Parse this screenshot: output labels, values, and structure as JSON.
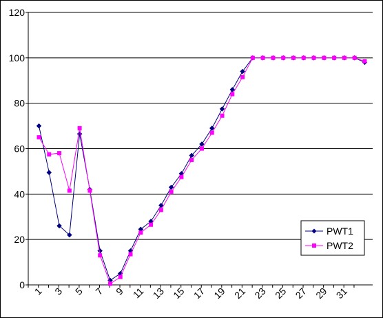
{
  "chart_data": {
    "type": "line",
    "title": "",
    "xlabel": "",
    "ylabel": "",
    "x": [
      1,
      2,
      3,
      4,
      5,
      6,
      7,
      8,
      9,
      10,
      11,
      12,
      13,
      14,
      15,
      16,
      17,
      18,
      19,
      20,
      21,
      22,
      23,
      24,
      25,
      26,
      27,
      28,
      29,
      30,
      31,
      32,
      33
    ],
    "x_tick_labels": [
      "1",
      "3",
      "5",
      "7",
      "9",
      "11",
      "13",
      "15",
      "17",
      "19",
      "21",
      "23",
      "25",
      "27",
      "29",
      "31"
    ],
    "x_tick_values": [
      1,
      3,
      5,
      7,
      9,
      11,
      13,
      15,
      17,
      19,
      21,
      23,
      25,
      27,
      29,
      31
    ],
    "ylim": [
      0,
      120
    ],
    "y_ticks": [
      0,
      20,
      40,
      60,
      80,
      100,
      120
    ],
    "grid": "horizontal",
    "legend_position": "bottom-right",
    "series": [
      {
        "name": "PWT1",
        "color": "#000080",
        "marker": "diamond",
        "values": [
          70,
          49.5,
          26,
          22,
          66.5,
          42,
          15,
          2,
          5,
          15,
          24.5,
          28,
          35,
          43,
          49,
          57,
          62,
          69,
          77.5,
          86,
          94,
          100,
          100,
          100,
          100,
          100,
          100,
          100,
          100,
          100,
          100,
          100,
          98
        ]
      },
      {
        "name": "PWT2",
        "color": "#FF00FF",
        "marker": "square",
        "values": [
          65,
          57.5,
          58,
          41.5,
          69,
          41.5,
          13,
          0.5,
          3.5,
          13.5,
          23,
          26.5,
          33,
          41,
          47.5,
          55,
          60,
          67,
          74.5,
          84,
          91.5,
          100,
          100,
          100,
          100,
          100,
          100,
          100,
          100,
          100,
          100,
          100,
          98.5
        ]
      }
    ]
  }
}
